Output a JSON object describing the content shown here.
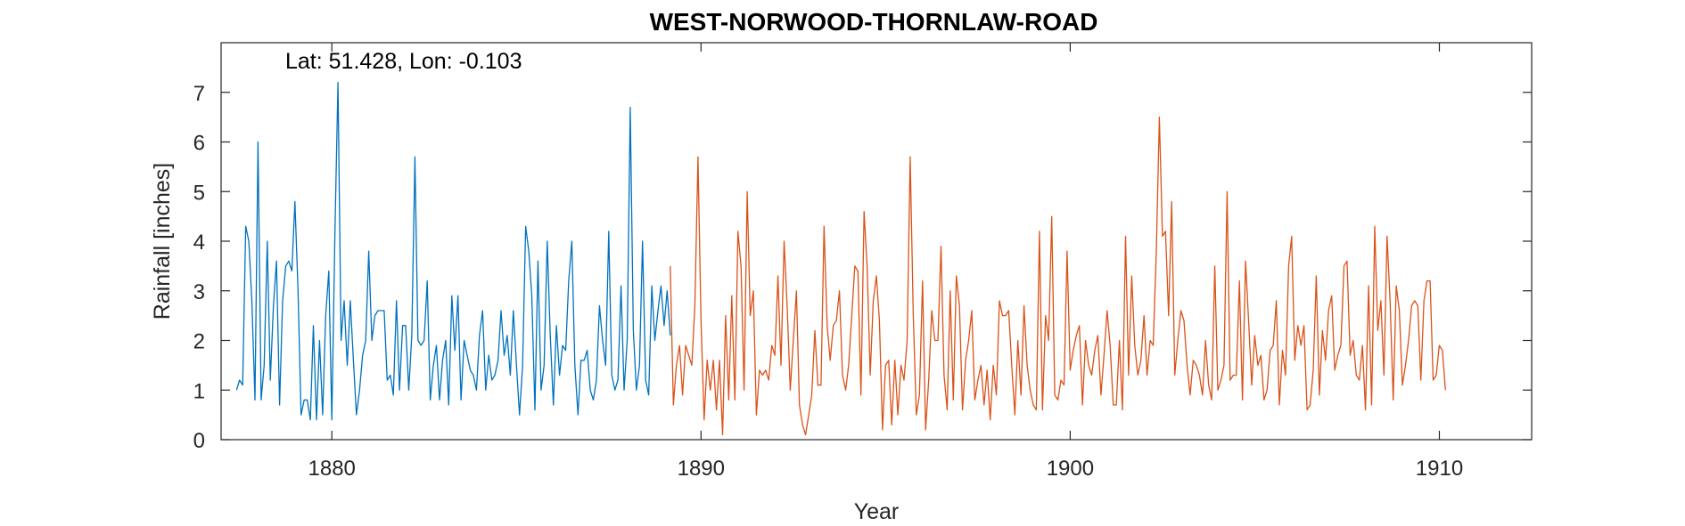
{
  "chart_data": {
    "type": "line",
    "title": "WEST-NORWOOD-THORNLAW-ROAD",
    "annotation": "Lat: 51.428, Lon: -0.103",
    "xlabel": "Year",
    "ylabel": "Rainfall [inches]",
    "xlim": [
      1877,
      1912.5
    ],
    "ylim": [
      0,
      8
    ],
    "xticks": [
      1880,
      1890,
      1900,
      1910
    ],
    "yticks": [
      0,
      1,
      2,
      3,
      4,
      5,
      6,
      7
    ],
    "grid": false,
    "colors": {
      "series1": "#0072BD",
      "series2": "#D95319",
      "axis": "#262626"
    },
    "series": [
      {
        "start": 1877.4167,
        "step": 0.08333,
        "values": [
          1.0,
          1.2,
          1.1,
          4.3,
          4.0,
          2.8,
          0.8,
          6.0,
          0.8,
          1.5,
          4.0,
          1.2,
          2.7,
          3.6,
          0.7,
          2.8,
          3.5,
          3.6,
          3.4,
          4.8,
          3.0,
          0.5,
          0.8,
          0.8,
          0.4,
          2.3,
          0.4,
          2.0,
          0.5,
          2.5,
          3.4,
          0.4,
          4.2,
          7.2,
          2.0,
          2.8,
          1.5,
          2.8,
          1.6,
          0.5,
          1.0,
          1.7,
          2.0,
          3.8,
          2.0,
          2.5,
          2.6,
          2.6,
          2.6,
          1.2,
          1.3,
          0.9,
          2.8,
          1.0,
          2.3,
          2.3,
          1.0,
          2.1,
          5.7,
          2.0,
          1.9,
          2.0,
          3.2,
          0.8,
          1.5,
          1.9,
          0.8,
          1.6,
          2.0,
          0.7,
          2.9,
          1.8,
          2.9,
          0.8,
          2.0,
          1.7,
          1.4,
          1.3,
          1.0,
          2.1,
          2.6,
          1.0,
          1.7,
          1.2,
          1.3,
          1.6,
          2.6,
          1.7,
          2.1,
          1.3,
          2.6,
          1.5,
          0.5,
          1.5,
          4.3,
          3.8,
          2.9,
          0.6,
          3.6,
          1.0,
          1.5,
          4.0,
          2.1,
          0.7,
          2.3,
          1.3,
          1.9,
          1.8,
          3.2,
          4.0,
          1.5,
          0.5,
          1.6,
          1.6,
          1.8,
          1.0,
          0.8,
          1.2,
          2.7,
          2.0,
          1.5,
          4.2,
          1.3,
          1.0,
          1.2,
          3.1,
          1.0,
          2.0,
          6.7,
          2.2,
          1.0,
          1.5,
          4.0,
          1.2,
          0.9,
          3.1,
          2.0,
          2.6,
          3.1,
          2.3,
          3.0,
          2.1
        ]
      },
      {
        "start": 1889.1667,
        "step": 0.08333,
        "values": [
          3.5,
          0.7,
          1.5,
          1.9,
          0.9,
          1.9,
          1.7,
          1.5,
          2.7,
          5.7,
          2.4,
          0.4,
          1.6,
          1.0,
          1.6,
          0.6,
          1.6,
          0.1,
          2.5,
          0.8,
          2.9,
          0.8,
          4.2,
          3.5,
          1.0,
          5.0,
          2.5,
          3.0,
          0.5,
          1.4,
          1.3,
          1.4,
          1.2,
          1.9,
          1.7,
          3.3,
          1.5,
          4.0,
          2.7,
          1.0,
          2.0,
          3.0,
          0.7,
          0.3,
          0.1,
          0.5,
          0.9,
          2.2,
          1.1,
          1.1,
          4.3,
          2.3,
          1.6,
          2.3,
          2.4,
          3.0,
          1.3,
          1.0,
          1.5,
          2.5,
          3.5,
          3.4,
          0.9,
          4.6,
          3.5,
          1.3,
          2.8,
          3.3,
          2.4,
          0.2,
          1.5,
          1.6,
          0.3,
          1.6,
          0.5,
          1.5,
          1.2,
          2.0,
          5.7,
          2.5,
          0.5,
          0.9,
          3.2,
          0.2,
          1.2,
          2.6,
          2.0,
          2.0,
          3.9,
          1.3,
          0.6,
          3.0,
          0.8,
          3.3,
          2.7,
          0.6,
          1.6,
          2.0,
          2.6,
          0.8,
          1.2,
          1.5,
          0.7,
          1.4,
          0.4,
          1.5,
          0.9,
          2.8,
          2.5,
          2.5,
          2.6,
          1.5,
          0.5,
          2.0,
          0.9,
          2.7,
          1.5,
          1.0,
          0.7,
          0.6,
          4.2,
          0.6,
          2.5,
          2.0,
          4.5,
          0.9,
          0.8,
          1.2,
          1.1,
          3.8,
          1.4,
          1.8,
          2.1,
          2.3,
          0.7,
          2.0,
          1.5,
          1.3,
          1.8,
          2.1,
          0.9,
          1.7,
          2.6,
          1.9,
          0.7,
          0.7,
          2.0,
          0.6,
          4.1,
          1.3,
          3.3,
          1.9,
          1.3,
          1.6,
          2.5,
          1.3,
          2.0,
          1.9,
          3.8,
          6.5,
          4.1,
          4.2,
          2.5,
          4.8,
          1.3,
          2.0,
          2.6,
          2.4,
          1.5,
          0.9,
          1.6,
          1.5,
          1.3,
          0.9,
          2.0,
          1.1,
          0.8,
          3.5,
          1.0,
          1.2,
          1.5,
          5.0,
          1.2,
          1.3,
          1.3,
          3.2,
          0.8,
          3.6,
          2.4,
          1.1,
          2.1,
          1.5,
          1.7,
          0.8,
          1.0,
          1.8,
          1.9,
          2.8,
          0.7,
          1.8,
          1.3,
          3.5,
          4.1,
          1.6,
          2.3,
          1.9,
          2.3,
          0.6,
          0.7,
          1.4,
          3.3,
          0.9,
          2.2,
          1.6,
          2.6,
          2.9,
          1.4,
          1.7,
          1.9,
          3.5,
          3.6,
          1.7,
          2.0,
          1.3,
          1.2,
          1.9,
          0.6,
          3.1,
          0.7,
          4.3,
          2.2,
          2.8,
          1.3,
          4.1,
          2.8,
          0.8,
          3.1,
          2.6,
          1.1,
          1.5,
          2.0,
          2.7,
          2.8,
          2.7,
          1.2,
          2.8,
          3.2,
          3.2,
          1.2,
          1.3,
          1.9,
          1.8,
          1.0
        ]
      }
    ]
  }
}
